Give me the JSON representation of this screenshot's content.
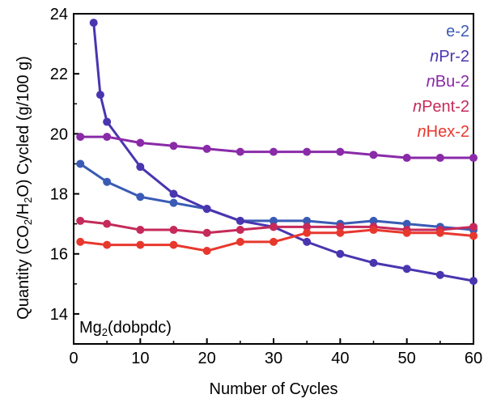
{
  "chart_data": {
    "type": "line",
    "xlabel": "Number of Cycles",
    "ylabel": {
      "pre": "Quantity (CO",
      "sub1": "2",
      "mid": "/H",
      "sub2": "2",
      "post": "O) Cycled (g/100 g)"
    },
    "xlim": [
      0,
      60
    ],
    "ylim": [
      13,
      24
    ],
    "xticks": [
      0,
      10,
      20,
      30,
      40,
      50,
      60
    ],
    "yticks": [
      14,
      16,
      18,
      20,
      22,
      24
    ],
    "grid": false,
    "legend_position": "top-right",
    "annotation": {
      "pre": "Mg",
      "sub": "2",
      "post": "(dobpdc)"
    },
    "series": [
      {
        "name": "e-2",
        "prefix": "",
        "stem": "e-2",
        "color": "#3a5bb5",
        "x": [
          1,
          5,
          10,
          15,
          20,
          25,
          30,
          35,
          40,
          45,
          50,
          55,
          60
        ],
        "y": [
          19.0,
          18.4,
          17.9,
          17.7,
          17.5,
          17.1,
          17.1,
          17.1,
          17.0,
          17.1,
          17.0,
          16.9,
          16.8
        ]
      },
      {
        "name": "nPr-2",
        "prefix": "n",
        "stem": "Pr-2",
        "color": "#4a35b0",
        "x": [
          3,
          4,
          5,
          10,
          15,
          20,
          25,
          30,
          35,
          40,
          45,
          50,
          55,
          60
        ],
        "y": [
          23.7,
          21.3,
          20.4,
          18.9,
          18.0,
          17.5,
          17.1,
          16.9,
          16.4,
          16.0,
          15.7,
          15.5,
          15.3,
          15.1
        ]
      },
      {
        "name": "nBu-2",
        "prefix": "n",
        "stem": "Bu-2",
        "color": "#8a2aa8",
        "x": [
          1,
          5,
          10,
          15,
          20,
          25,
          30,
          35,
          40,
          45,
          50,
          55,
          60
        ],
        "y": [
          19.9,
          19.9,
          19.7,
          19.6,
          19.5,
          19.4,
          19.4,
          19.4,
          19.4,
          19.3,
          19.2,
          19.2,
          19.2
        ]
      },
      {
        "name": "nPent-2",
        "prefix": "n",
        "stem": "Pent-2",
        "color": "#c52a5a",
        "x": [
          1,
          5,
          10,
          15,
          20,
          25,
          30,
          35,
          40,
          45,
          50,
          55,
          60
        ],
        "y": [
          17.1,
          17.0,
          16.8,
          16.8,
          16.7,
          16.8,
          16.9,
          16.9,
          16.9,
          16.9,
          16.8,
          16.8,
          16.9
        ]
      },
      {
        "name": "nHex-2",
        "prefix": "n",
        "stem": "Hex-2",
        "color": "#e8382e",
        "x": [
          1,
          5,
          10,
          15,
          20,
          25,
          30,
          35,
          40,
          45,
          50,
          55,
          60
        ],
        "y": [
          16.4,
          16.3,
          16.3,
          16.3,
          16.1,
          16.4,
          16.4,
          16.7,
          16.7,
          16.8,
          16.7,
          16.7,
          16.6
        ]
      }
    ]
  }
}
